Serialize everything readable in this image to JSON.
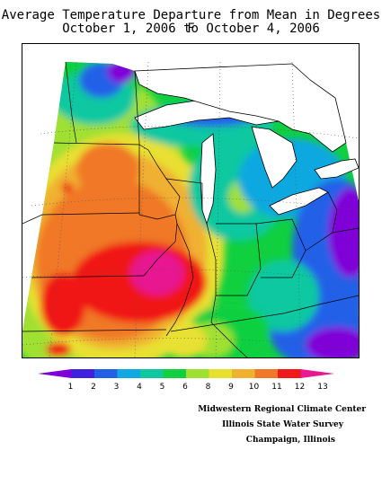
{
  "title_line1": "Average Temperature Departure from Mean in Degrees F",
  "title_line2": "October 1, 2006 to October 4, 2006",
  "legend": {
    "values": [
      "1",
      "2",
      "3",
      "4",
      "5",
      "6",
      "8",
      "9",
      "10",
      "11",
      "12",
      "13"
    ],
    "colors": [
      "#8000d8",
      "#4020e0",
      "#2060e8",
      "#10a8e0",
      "#10c8a0",
      "#10d040",
      "#a0e030",
      "#e8e030",
      "#f0b030",
      "#f07828",
      "#f01818",
      "#e81890"
    ]
  },
  "credits": [
    "Midwestern Regional Climate Center",
    "Illinois State Water Survey",
    "Champaign, Illinois"
  ]
}
